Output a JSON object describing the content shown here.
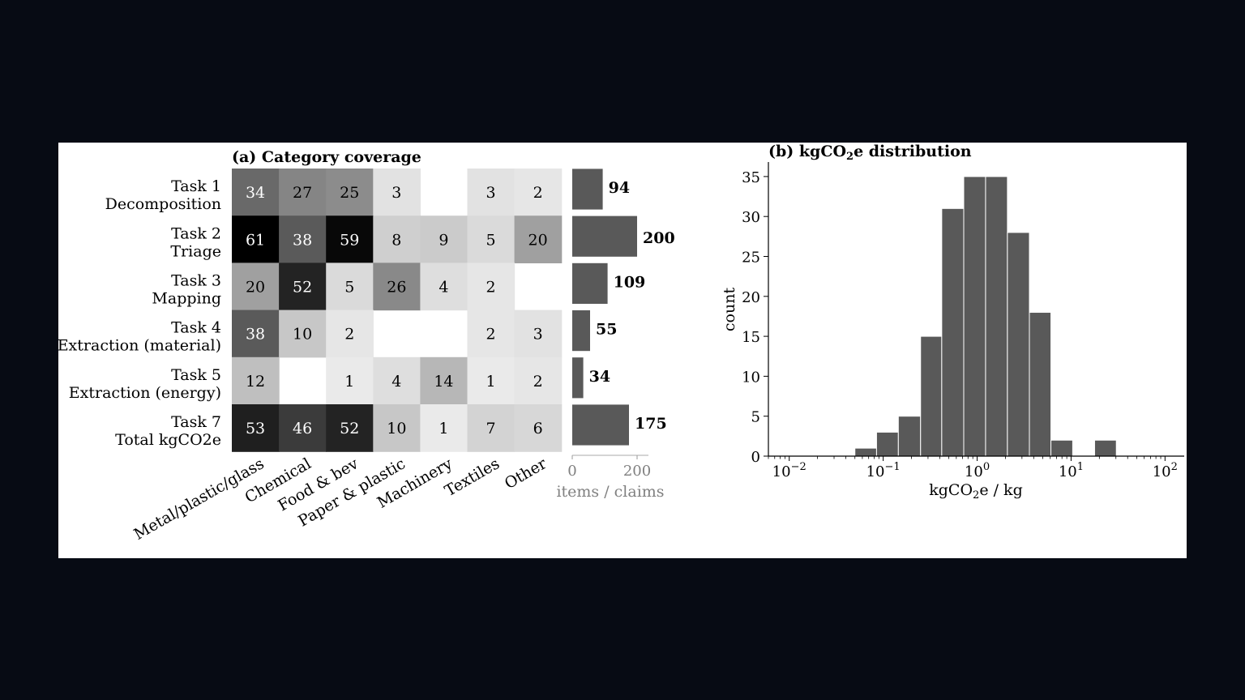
{
  "chart_data": [
    {
      "type": "heatmap",
      "title": "(a) Category coverage",
      "rows": [
        {
          "task": "Task 1",
          "name": "Decomposition"
        },
        {
          "task": "Task 2",
          "name": "Triage"
        },
        {
          "task": "Task 3",
          "name": "Mapping"
        },
        {
          "task": "Task 4",
          "name": "Extraction (material)"
        },
        {
          "task": "Task 5",
          "name": "Extraction (energy)"
        },
        {
          "task": "Task 7",
          "name": "Total kgCO2e"
        }
      ],
      "columns": [
        "Metal/plastic/glass",
        "Chemical",
        "Food & bev",
        "Paper & plastic",
        "Machinery",
        "Textiles",
        "Other"
      ],
      "values": [
        [
          34,
          27,
          25,
          3,
          null,
          3,
          2
        ],
        [
          61,
          38,
          59,
          8,
          9,
          5,
          20
        ],
        [
          20,
          52,
          5,
          26,
          4,
          2,
          null
        ],
        [
          38,
          10,
          2,
          null,
          null,
          2,
          3
        ],
        [
          12,
          null,
          1,
          4,
          14,
          1,
          2
        ],
        [
          53,
          46,
          52,
          10,
          1,
          7,
          6
        ]
      ],
      "colormap": "grays",
      "vmax": 61,
      "totals": {
        "values": [
          94,
          200,
          109,
          55,
          34,
          175
        ],
        "xlabel": "items / claims",
        "xticks": [
          0,
          200
        ],
        "xlim": [
          0,
          215
        ],
        "bar_color": "#595959"
      }
    },
    {
      "type": "bar",
      "subtype": "histogram",
      "title_parts": [
        "(b) kgCO",
        "2",
        "e distribution"
      ],
      "xlabel_parts": [
        "kgCO",
        "2",
        "e / kg"
      ],
      "ylabel": "count",
      "xscale": "log",
      "xlim": [
        0.006,
        160
      ],
      "ylim": [
        0,
        37
      ],
      "yticks": [
        0,
        5,
        10,
        15,
        20,
        25,
        30,
        35
      ],
      "xticks": [
        -2,
        -1,
        0,
        1,
        2
      ],
      "bar_color": "#595959",
      "bins": [
        {
          "from": 0.01,
          "to": 0.017,
          "count": 0
        },
        {
          "from": 0.017,
          "to": 0.029,
          "count": 0
        },
        {
          "from": 0.029,
          "to": 0.05,
          "count": 0
        },
        {
          "from": 0.05,
          "to": 0.085,
          "count": 1
        },
        {
          "from": 0.085,
          "to": 0.145,
          "count": 3
        },
        {
          "from": 0.145,
          "to": 0.25,
          "count": 5
        },
        {
          "from": 0.25,
          "to": 0.42,
          "count": 15
        },
        {
          "from": 0.42,
          "to": 0.72,
          "count": 31
        },
        {
          "from": 0.72,
          "to": 1.23,
          "count": 35
        },
        {
          "from": 1.23,
          "to": 2.1,
          "count": 35
        },
        {
          "from": 2.1,
          "to": 3.6,
          "count": 28
        },
        {
          "from": 3.6,
          "to": 6.1,
          "count": 18
        },
        {
          "from": 6.1,
          "to": 10.4,
          "count": 2
        },
        {
          "from": 10.4,
          "to": 17.8,
          "count": 0
        },
        {
          "from": 17.8,
          "to": 30.3,
          "count": 2
        },
        {
          "from": 30.3,
          "to": 52,
          "count": 0
        }
      ]
    }
  ]
}
